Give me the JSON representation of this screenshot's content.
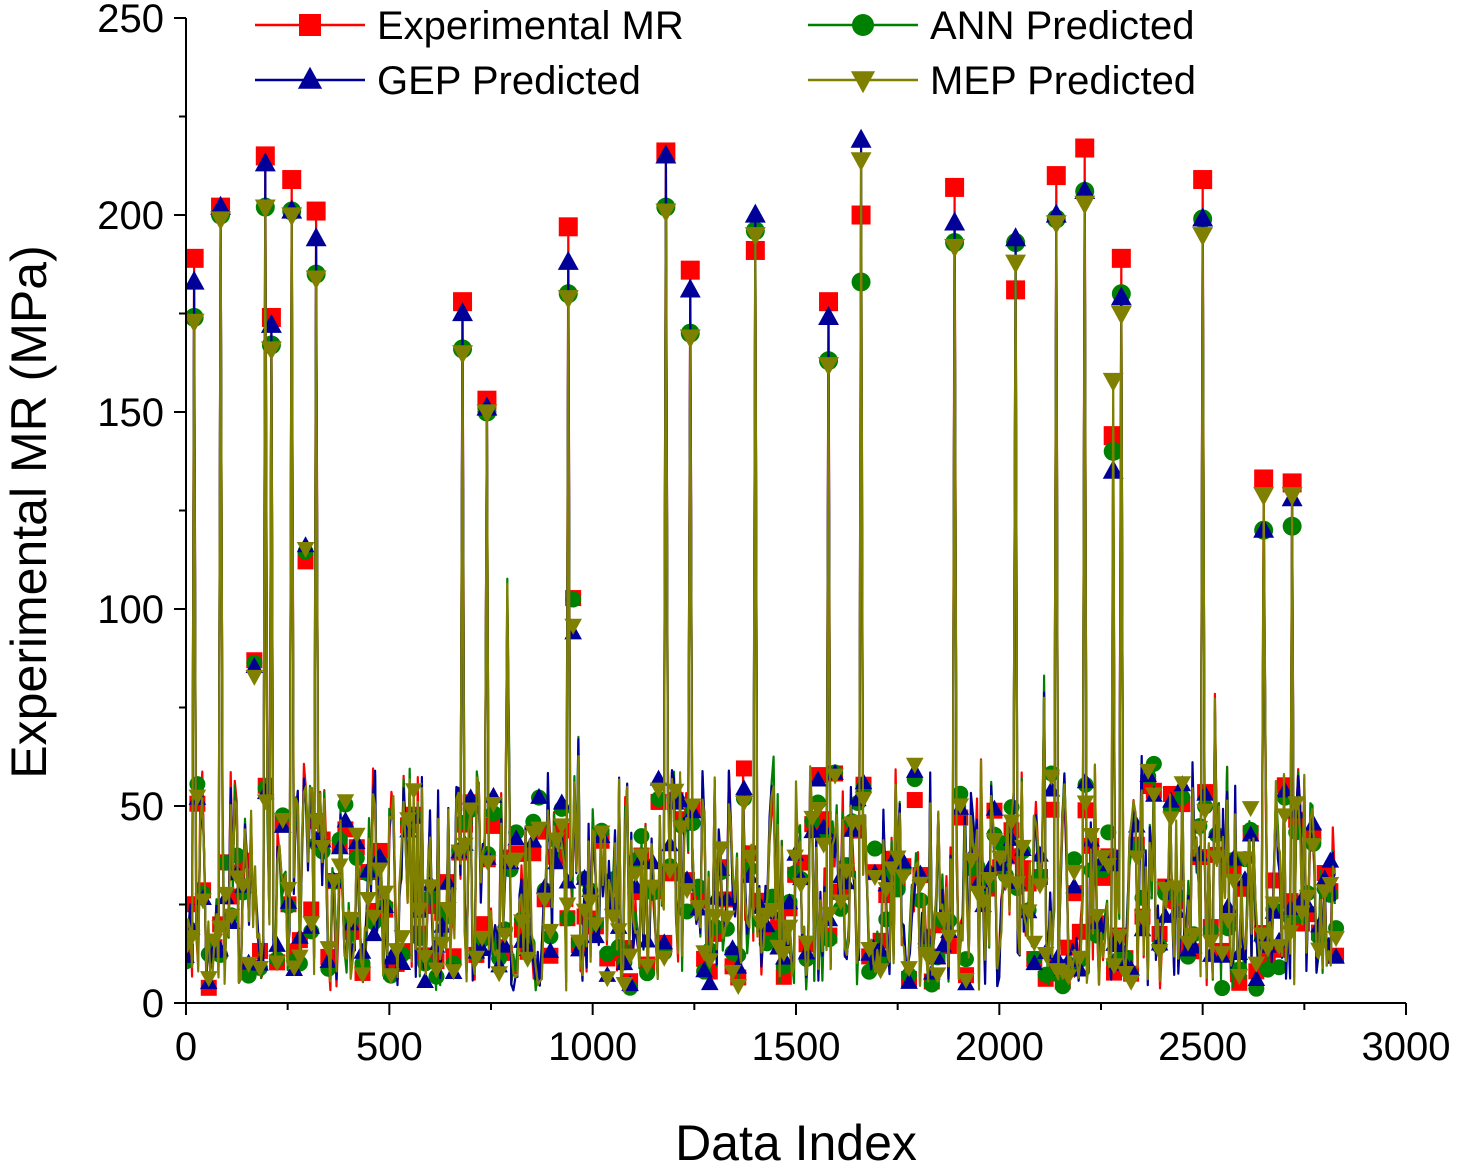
{
  "chart_data": {
    "type": "line",
    "xlabel": "Data Index",
    "ylabel": "Experimental MR (MPa)",
    "xlim": [
      0,
      3000
    ],
    "ylim": [
      0,
      250
    ],
    "x_ticks": [
      0,
      500,
      1000,
      1500,
      2000,
      2500,
      3000
    ],
    "y_ticks": [
      0,
      50,
      100,
      150,
      200,
      250
    ],
    "grid": false,
    "legend_position": "top",
    "n_points": 2830,
    "note": "Dense per-sample series; values listed are the visible peak samples (index, MR in MPa). Remaining samples cluster between roughly 5 and 60 MPa.",
    "series": [
      {
        "name": "Experimental MR",
        "color": "#ff0000",
        "marker": "square",
        "peaks": [
          [
            20,
            189
          ],
          [
            85,
            202
          ],
          [
            195,
            215
          ],
          [
            210,
            174
          ],
          [
            260,
            209
          ],
          [
            320,
            201
          ],
          [
            680,
            178
          ],
          [
            740,
            153
          ],
          [
            940,
            197
          ],
          [
            1180,
            216
          ],
          [
            1240,
            186
          ],
          [
            1400,
            191
          ],
          [
            1580,
            178
          ],
          [
            1660,
            200
          ],
          [
            1890,
            207
          ],
          [
            2040,
            181
          ],
          [
            2140,
            210
          ],
          [
            2210,
            217
          ],
          [
            2280,
            144
          ],
          [
            2300,
            189
          ],
          [
            2500,
            209
          ],
          [
            2650,
            133
          ],
          [
            2720,
            132
          ]
        ]
      },
      {
        "name": "ANN Predicted",
        "color": "#008000",
        "marker": "circle",
        "peaks": [
          [
            20,
            174
          ],
          [
            85,
            200
          ],
          [
            195,
            202
          ],
          [
            210,
            167
          ],
          [
            260,
            201
          ],
          [
            320,
            185
          ],
          [
            680,
            166
          ],
          [
            740,
            150
          ],
          [
            940,
            180
          ],
          [
            1180,
            202
          ],
          [
            1240,
            170
          ],
          [
            1400,
            196
          ],
          [
            1580,
            163
          ],
          [
            1660,
            183
          ],
          [
            1890,
            193
          ],
          [
            2040,
            193
          ],
          [
            2140,
            199
          ],
          [
            2210,
            206
          ],
          [
            2280,
            140
          ],
          [
            2300,
            180
          ],
          [
            2500,
            199
          ],
          [
            2650,
            120
          ],
          [
            2720,
            121
          ]
        ]
      },
      {
        "name": "GEP Predicted",
        "color": "#000099",
        "marker": "triangle-up",
        "peaks": [
          [
            20,
            183
          ],
          [
            85,
            202
          ],
          [
            195,
            213
          ],
          [
            210,
            172
          ],
          [
            260,
            201
          ],
          [
            320,
            194
          ],
          [
            680,
            175
          ],
          [
            740,
            151
          ],
          [
            940,
            188
          ],
          [
            1180,
            215
          ],
          [
            1240,
            181
          ],
          [
            1400,
            200
          ],
          [
            1580,
            174
          ],
          [
            1660,
            219
          ],
          [
            1890,
            198
          ],
          [
            2040,
            194
          ],
          [
            2140,
            200
          ],
          [
            2210,
            206
          ],
          [
            2280,
            135
          ],
          [
            2300,
            179
          ],
          [
            2500,
            199
          ],
          [
            2650,
            120
          ],
          [
            2720,
            128
          ]
        ]
      },
      {
        "name": "MEP Predicted",
        "color": "#808000",
        "marker": "triangle-down",
        "peaks": [
          [
            20,
            173
          ],
          [
            85,
            199
          ],
          [
            195,
            202
          ],
          [
            210,
            166
          ],
          [
            260,
            200
          ],
          [
            320,
            184
          ],
          [
            680,
            165
          ],
          [
            740,
            150
          ],
          [
            940,
            179
          ],
          [
            1180,
            201
          ],
          [
            1240,
            169
          ],
          [
            1400,
            195
          ],
          [
            1580,
            162
          ],
          [
            1660,
            214
          ],
          [
            1890,
            192
          ],
          [
            2040,
            188
          ],
          [
            2140,
            198
          ],
          [
            2210,
            203
          ],
          [
            2280,
            158
          ],
          [
            2300,
            175
          ],
          [
            2500,
            195
          ],
          [
            2650,
            129
          ],
          [
            2720,
            129
          ]
        ]
      }
    ]
  }
}
